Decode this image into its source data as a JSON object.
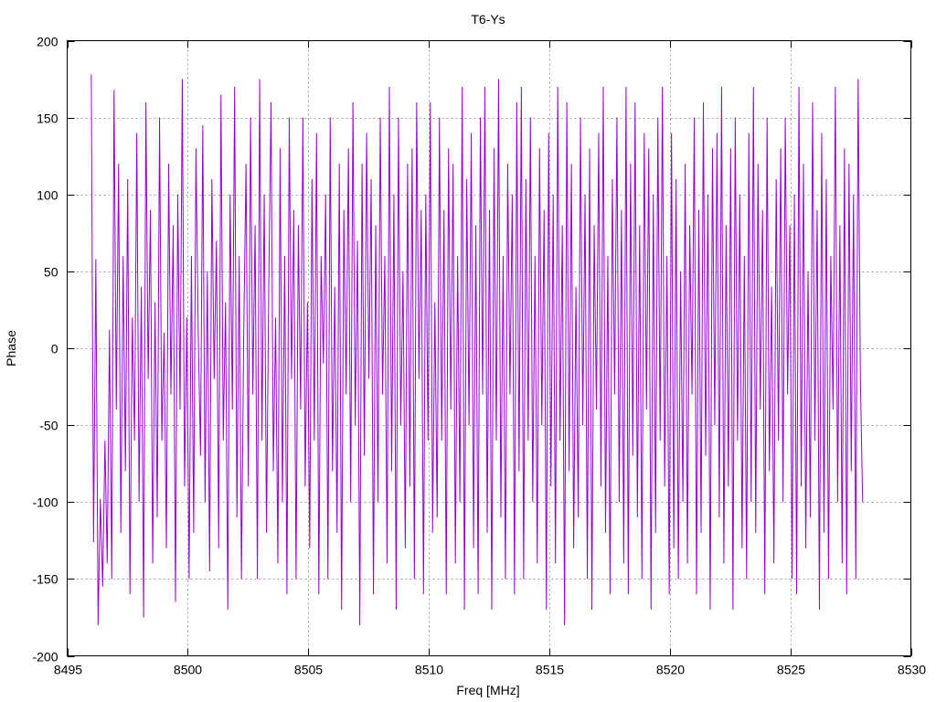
{
  "chart_data": {
    "type": "line",
    "title": "T6-Ys",
    "xlabel": "Freq [MHz]",
    "ylabel": "Phase",
    "xlim": [
      8495,
      8530
    ],
    "ylim": [
      -200,
      200
    ],
    "xticks": [
      8495,
      8500,
      8505,
      8510,
      8515,
      8520,
      8525,
      8530
    ],
    "yticks": [
      -200,
      -150,
      -100,
      -50,
      0,
      50,
      100,
      150,
      200
    ],
    "grid": true,
    "series": [
      {
        "color": "#9400d3",
        "x_start": 8496.0,
        "x_end": 8528.0,
        "values": [
          178,
          -126,
          58,
          -180,
          -98,
          -155,
          -60,
          -140,
          12,
          -150,
          168,
          -40,
          120,
          -120,
          60,
          -80,
          110,
          -160,
          20,
          -60,
          140,
          -100,
          40,
          -175,
          160,
          -20,
          90,
          -140,
          30,
          -110,
          150,
          -60,
          10,
          -130,
          120,
          -30,
          80,
          -165,
          100,
          -40,
          175,
          -90,
          20,
          -150,
          60,
          -120,
          130,
          10,
          -70,
          145,
          -100,
          50,
          -145,
          110,
          -20,
          70,
          -130,
          165,
          -60,
          30,
          -170,
          100,
          -40,
          170,
          -110,
          60,
          -150,
          10,
          120,
          -90,
          150,
          -30,
          80,
          -150,
          175,
          -60,
          100,
          -120,
          40,
          160,
          -80,
          20,
          -140,
          130,
          -100,
          60,
          -160,
          150,
          -20,
          90,
          -150,
          80,
          -40,
          150,
          -90,
          30,
          -130,
          110,
          -60,
          140,
          -160,
          60,
          -10,
          100,
          -150,
          150,
          -80,
          40,
          -120,
          120,
          -170,
          90,
          -30,
          130,
          -100,
          160,
          -50,
          70,
          -180,
          120,
          -70,
          140,
          -20,
          110,
          -160,
          80,
          -100,
          150,
          -30,
          60,
          -140,
          170,
          -80,
          100,
          -170,
          150,
          -50,
          50,
          -130,
          120,
          -90,
          130,
          -150,
          160,
          -20,
          90,
          -160,
          100,
          -60,
          160,
          -120,
          30,
          -110,
          150,
          -60,
          90,
          -160,
          130,
          -40,
          120,
          -140,
          60,
          -100,
          170,
          -170,
          110,
          -50,
          140,
          -130,
          80,
          -160,
          150,
          -30,
          170,
          -120,
          90,
          -170,
          130,
          -60,
          175,
          -110,
          60,
          -150,
          120,
          -30,
          100,
          -160,
          160,
          -80,
          170,
          -150,
          110,
          -60,
          150,
          -100,
          60,
          -140,
          130,
          -50,
          90,
          -170,
          140,
          -90,
          100,
          -140,
          170,
          -60,
          80,
          -180,
          160,
          -80,
          120,
          -130,
          40,
          -110,
          150,
          -50,
          100,
          -150,
          130,
          -170,
          80,
          -40,
          140,
          -90,
          170,
          -120,
          60,
          -160,
          110,
          -30,
          150,
          -100,
          90,
          -140,
          170,
          -160,
          120,
          -70,
          160,
          -110,
          80,
          -150,
          140,
          -40,
          130,
          -170,
          100,
          -120,
          150,
          -60,
          170,
          -90,
          60,
          -160,
          140,
          -130,
          110,
          -150,
          50,
          -100,
          120,
          -140,
          80,
          -30,
          150,
          -160,
          90,
          -120,
          160,
          -70,
          100,
          -170,
          130,
          -50,
          140,
          -110,
          170,
          -140,
          80,
          -90,
          130,
          -170,
          150,
          -60,
          100,
          -130,
          60,
          -150,
          140,
          -100,
          170,
          -120,
          120,
          -40,
          90,
          -160,
          150,
          -80,
          40,
          -140,
          110,
          -60,
          130,
          -100,
          150,
          -30,
          80,
          -150,
          100,
          -160,
          170,
          -90,
          120,
          -130,
          50,
          -110,
          160,
          -60,
          90,
          -170,
          140,
          -120,
          110,
          -150,
          60,
          -40,
          170,
          -100,
          80,
          -140,
          130,
          -160,
          120,
          -80,
          100,
          -150,
          175,
          -20,
          -100
        ]
      }
    ]
  }
}
